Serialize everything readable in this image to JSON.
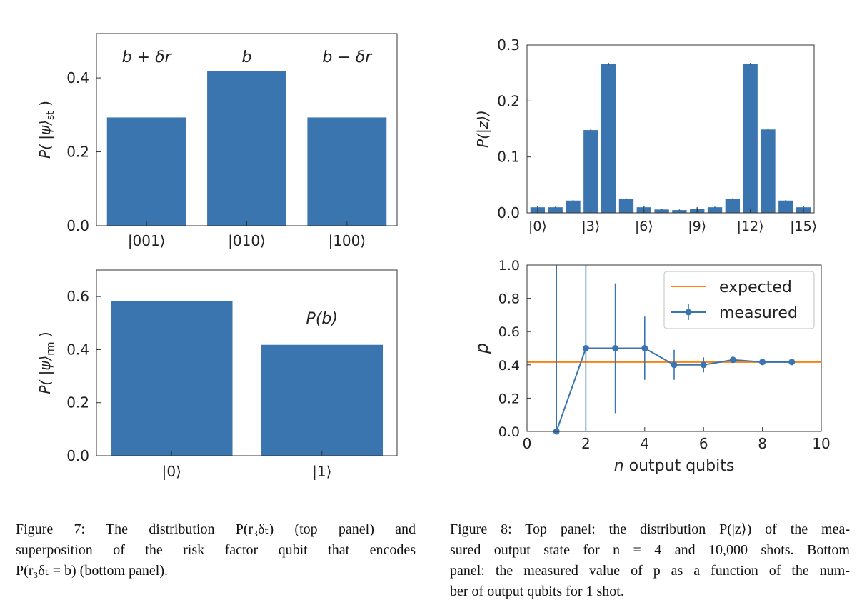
{
  "chart_data": [
    {
      "type": "bar",
      "categories": [
        "|001⟩",
        "|010⟩",
        "|100⟩"
      ],
      "values": [
        0.293,
        0.418,
        0.293
      ],
      "annotations": [
        "b + δr",
        "b",
        "b − δr"
      ],
      "ylabel": "P( |ψ⟩st )",
      "ylabel_main": "P( |ψ⟩",
      "ylabel_sub": "st",
      "ylabel_end": " )",
      "ylim": [
        0,
        0.52
      ],
      "yticks": [
        0.0,
        0.2,
        0.4
      ],
      "ytick_labels": [
        "0.0",
        "0.2",
        "0.4"
      ],
      "color": "#3b75af"
    },
    {
      "type": "bar",
      "categories": [
        "|0⟩",
        "|1⟩"
      ],
      "values": [
        0.582,
        0.418
      ],
      "annotations": [
        "",
        "P(b)"
      ],
      "ylabel": "P( |ψ⟩rm )",
      "ylabel_main": "P( |ψ⟩",
      "ylabel_sub": "rm",
      "ylabel_end": " )",
      "ylim": [
        0,
        0.7
      ],
      "yticks": [
        0.0,
        0.2,
        0.4,
        0.6
      ],
      "ytick_labels": [
        "0.0",
        "0.2",
        "0.4",
        "0.6"
      ],
      "color": "#3b75af"
    },
    {
      "type": "bar",
      "categories": [
        "|0⟩",
        "|1⟩",
        "|2⟩",
        "|3⟩",
        "|4⟩",
        "|5⟩",
        "|6⟩",
        "|7⟩",
        "|8⟩",
        "|9⟩",
        "|10⟩",
        "|11⟩",
        "|12⟩",
        "|13⟩",
        "|14⟩",
        "|15⟩"
      ],
      "values": [
        0.01,
        0.01,
        0.022,
        0.148,
        0.266,
        0.025,
        0.01,
        0.006,
        0.005,
        0.007,
        0.01,
        0.025,
        0.266,
        0.149,
        0.022,
        0.01
      ],
      "errors": [
        0.002,
        0.001,
        0.001,
        0.002,
        0.002,
        0.001,
        0.002,
        0.001,
        0.001,
        0.003,
        0.001,
        0.001,
        0.002,
        0.002,
        0.001,
        0.002
      ],
      "tick_every": 3,
      "ylabel": "P(|z⟩)",
      "ylim": [
        0,
        0.3
      ],
      "yticks": [
        0.0,
        0.1,
        0.2,
        0.3
      ],
      "ytick_labels": [
        "0.0",
        "0.1",
        "0.2",
        "0.3"
      ],
      "color": "#3b75af"
    },
    {
      "type": "line",
      "title": "",
      "xlabel_italic": "n",
      "xlabel_rest": " output qubits",
      "xlabel": "n output qubits",
      "ylabel": "p",
      "xlim": [
        0,
        10
      ],
      "ylim": [
        0,
        1.0
      ],
      "xticks": [
        0,
        2,
        4,
        6,
        8,
        10
      ],
      "xtick_labels": [
        "0",
        "2",
        "4",
        "6",
        "8",
        "10"
      ],
      "yticks": [
        0.0,
        0.2,
        0.4,
        0.6,
        0.8,
        1.0
      ],
      "ytick_labels": [
        "0.0",
        "0.2",
        "0.4",
        "0.6",
        "0.8",
        "1.0"
      ],
      "expected": {
        "name": "expected",
        "value": 0.417,
        "color": "#ff7f0e"
      },
      "series": [
        {
          "name": "measured",
          "color": "#3b75af",
          "x": [
            1,
            2,
            3,
            4,
            5,
            6,
            7,
            8,
            9
          ],
          "y": [
            0.0,
            0.5,
            0.5,
            0.5,
            0.4,
            0.4,
            0.43,
            0.417,
            0.417
          ],
          "err": [
            1.05,
            0.98,
            0.39,
            0.19,
            0.09,
            0.045,
            0.015,
            0.006,
            0.004
          ]
        }
      ],
      "legend": "top-right"
    }
  ],
  "captions": {
    "fig7": {
      "lines": [
        "Figure 7:  The distribution P(r₃δₜ) (top panel) and",
        "superposition of the risk factor qubit that encodes",
        "P(r₃δₜ = b) (bottom panel)."
      ]
    },
    "fig8": {
      "lines": [
        "Figure 8: Top panel: the distribution P(|z⟩) of the mea-",
        "sured output state for n = 4 and 10,000 shots. Bottom",
        "panel: the measured value of p as a function of the num-",
        "ber of output qubits for 1 shot."
      ]
    }
  }
}
